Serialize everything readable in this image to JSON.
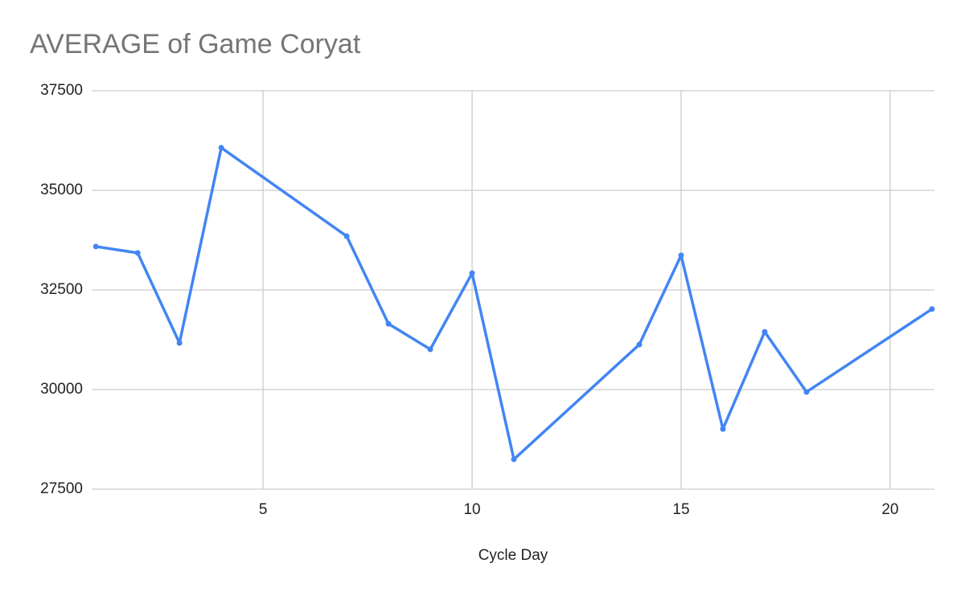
{
  "chart_data": {
    "type": "line",
    "title": "AVERAGE of Game Coryat",
    "x_label": "Cycle Day",
    "x": [
      1,
      2,
      3,
      4,
      7,
      8,
      9,
      10,
      11,
      14,
      15,
      16,
      17,
      18,
      21
    ],
    "series": [
      {
        "color": "#4285f4",
        "values": [
          33590,
          33430,
          31170,
          36070,
          33850,
          31650,
          31010,
          32920,
          28250,
          31130,
          33370,
          29010,
          31450,
          29940,
          32020
        ]
      }
    ],
    "xlim": [
      0.9,
      21.06
    ],
    "xticks": [
      5,
      10,
      15,
      20
    ],
    "ylim": [
      27500,
      37500
    ],
    "yticks": [
      27500,
      30000,
      32500,
      35000,
      37500
    ],
    "grid": true
  }
}
